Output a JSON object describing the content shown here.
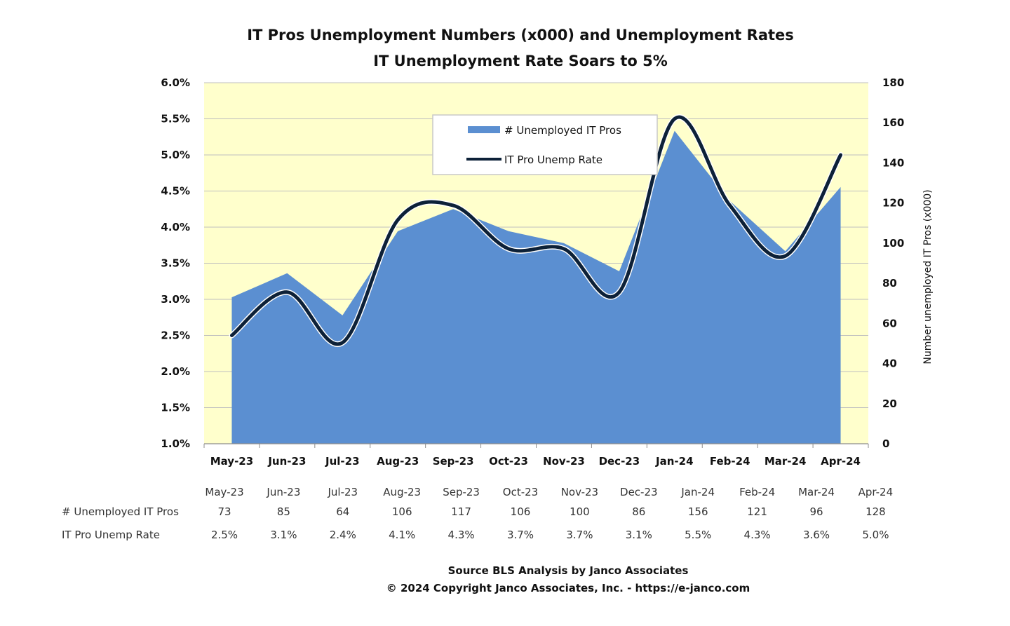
{
  "chart_data": {
    "type": "area",
    "title": "IT Pros Unemployment Numbers (x000) and Unemployment Rates",
    "subtitle": "IT Unemployment Rate Soars to 5%",
    "categories": [
      "May-23",
      "Jun-23",
      "Jul-23",
      "Aug-23",
      "Sep-23",
      "Oct-23",
      "Nov-23",
      "Dec-23",
      "Jan-24",
      "Feb-24",
      "Mar-24",
      "Apr-24"
    ],
    "series": [
      {
        "name": "# Unemployed IT Pros",
        "kind": "area",
        "axis": "right",
        "color": "#5b8fd1",
        "values": [
          73,
          85,
          64,
          106,
          117,
          106,
          100,
          86,
          156,
          121,
          96,
          128
        ]
      },
      {
        "name": "IT Pro Unemp Rate",
        "kind": "line",
        "axis": "left",
        "color": "#0d2138",
        "values": [
          2.5,
          3.1,
          2.4,
          4.1,
          4.3,
          3.7,
          3.7,
          3.1,
          5.5,
          4.3,
          3.6,
          5.0
        ]
      }
    ],
    "yleft": {
      "min": 1.0,
      "max": 6.0,
      "step": 0.5,
      "tick_labels": [
        "1.0%",
        "1.5%",
        "2.0%",
        "2.5%",
        "3.0%",
        "3.5%",
        "4.0%",
        "4.5%",
        "5.0%",
        "5.5%",
        "6.0%"
      ]
    },
    "yright": {
      "min": 0,
      "max": 180,
      "step": 20,
      "label": "Number unemployed IT Pros (x000)",
      "tick_labels": [
        "0",
        "20",
        "40",
        "60",
        "80",
        "100",
        "120",
        "140",
        "160",
        "180"
      ]
    },
    "legend_placement": "top-center",
    "plot_background": "#ffffcc",
    "grid": true,
    "data_table": {
      "header": [
        "May-23",
        "Jun-23",
        "Jul-23",
        "Aug-23",
        "Sep-23",
        "Oct-23",
        "Nov-23",
        "Dec-23",
        "Jan-24",
        "Feb-24",
        "Mar-24",
        "Apr-24"
      ],
      "rows": [
        {
          "label": "# Unemployed IT Pros",
          "cells": [
            "73",
            "85",
            "64",
            "106",
            "117",
            "106",
            "100",
            "86",
            "156",
            "121",
            "96",
            "128"
          ]
        },
        {
          "label": "IT Pro Unemp Rate",
          "cells": [
            "2.5%",
            "3.1%",
            "2.4%",
            "4.1%",
            "4.3%",
            "3.7%",
            "3.7%",
            "3.1%",
            "5.5%",
            "4.3%",
            "3.6%",
            "5.0%"
          ]
        }
      ]
    }
  },
  "footer": {
    "source": "Source BLS Analysis by Janco Associates",
    "copyright": "© 2024 Copyright Janco Associates, Inc. - https://e-janco.com"
  }
}
